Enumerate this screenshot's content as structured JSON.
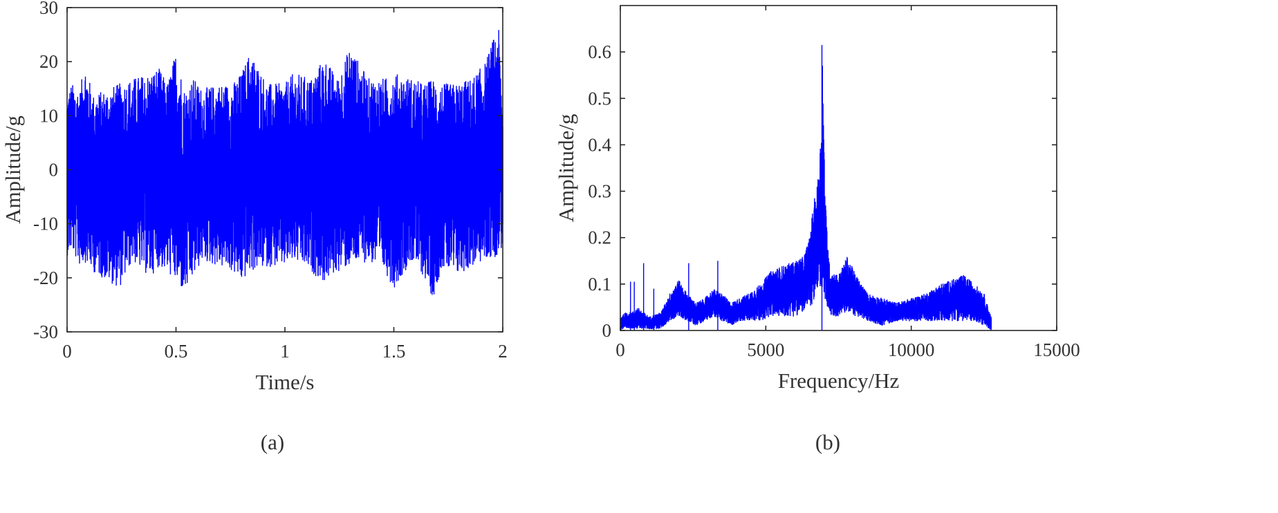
{
  "chart_data": [
    {
      "panel_label": "(a)",
      "type": "line",
      "title": "",
      "xlabel": "Time/s",
      "ylabel": "Amplitude/g",
      "xlim": [
        0,
        2
      ],
      "ylim": [
        -30,
        30
      ],
      "xticks": [
        0,
        0.5,
        1,
        1.5,
        2
      ],
      "xtick_labels": [
        "0",
        "0.5",
        "1",
        "1.5",
        "2"
      ],
      "yticks": [
        -30,
        -20,
        -10,
        0,
        10,
        20,
        30
      ],
      "ytick_labels": [
        "-30",
        "-20",
        "-10",
        "0",
        "10",
        "20",
        "30"
      ],
      "grid": false,
      "line_color": "#0000ff",
      "series": [
        {
          "x": [
            0,
            0.02,
            0.06,
            0.08,
            0.12,
            0.24,
            0.3,
            0.38,
            0.42,
            0.46,
            0.5,
            0.54,
            0.58,
            0.62,
            0.7,
            0.76,
            0.8,
            0.84,
            0.92,
            1.0,
            1.04,
            1.12,
            1.18,
            1.24,
            1.3,
            1.38,
            1.46,
            1.5,
            1.58,
            1.64,
            1.68,
            1.72,
            1.78,
            1.86,
            1.92,
            1.98,
            2.0
          ],
          "upper": [
            14,
            16,
            15,
            20,
            14,
            16,
            17,
            18,
            19,
            16,
            22,
            15,
            17,
            15,
            16,
            16,
            18,
            22,
            16,
            16,
            18,
            17,
            21,
            17,
            23,
            17,
            17,
            18,
            17,
            16,
            17,
            16,
            16,
            17,
            20,
            27,
            11
          ],
          "lower": [
            -16,
            -15,
            -18,
            -17,
            -19,
            -22,
            -17,
            -20,
            -18,
            -19,
            -21,
            -23,
            -20,
            -17,
            -18,
            -19,
            -21,
            -19,
            -18,
            -18,
            -17,
            -19,
            -21,
            -19,
            -18,
            -17,
            -19,
            -22,
            -17,
            -20,
            -24,
            -18,
            -20,
            -18,
            -17,
            -16,
            -14
          ]
        }
      ]
    },
    {
      "panel_label": "(b)",
      "type": "line",
      "title": "",
      "xlabel": "Frequency/Hz",
      "ylabel": "Amplitude/g",
      "xlim": [
        0,
        15000
      ],
      "ylim": [
        0,
        0.7
      ],
      "xticks": [
        0,
        5000,
        10000,
        15000
      ],
      "xtick_labels": [
        "0",
        "5000",
        "10000",
        "15000"
      ],
      "yticks": [
        0,
        0.1,
        0.2,
        0.3,
        0.4,
        0.5,
        0.6
      ],
      "ytick_labels": [
        "0",
        "0.1",
        "0.2",
        "0.3",
        "0.4",
        "0.5",
        "0.6"
      ],
      "grid": false,
      "line_color": "#0000ff",
      "series": [
        {
          "x": [
            0,
            200,
            400,
            600,
            800,
            1000,
            1400,
            1700,
            2000,
            2300,
            2600,
            2900,
            3200,
            3500,
            3800,
            4100,
            4400,
            4800,
            5200,
            5600,
            6000,
            6300,
            6500,
            6650,
            6750,
            6850,
            6900,
            6950,
            7000,
            7050,
            7200,
            7500,
            7800,
            8100,
            8500,
            9000,
            9500,
            10000,
            10500,
            11000,
            11400,
            11800,
            12200,
            12500,
            12750
          ],
          "upper": [
            0.03,
            0.04,
            0.04,
            0.05,
            0.04,
            0.03,
            0.04,
            0.08,
            0.11,
            0.08,
            0.06,
            0.07,
            0.09,
            0.08,
            0.06,
            0.07,
            0.08,
            0.1,
            0.13,
            0.14,
            0.15,
            0.16,
            0.2,
            0.28,
            0.3,
            0.38,
            0.43,
            0.61,
            0.42,
            0.28,
            0.13,
            0.12,
            0.16,
            0.12,
            0.08,
            0.07,
            0.06,
            0.07,
            0.08,
            0.1,
            0.11,
            0.12,
            0.1,
            0.08,
            0.03
          ],
          "lower": [
            0.0,
            0.002,
            0.004,
            0.002,
            0.004,
            0.002,
            0.004,
            0.02,
            0.03,
            0.02,
            0.01,
            0.02,
            0.03,
            0.02,
            0.01,
            0.02,
            0.02,
            0.02,
            0.03,
            0.03,
            0.03,
            0.04,
            0.05,
            0.06,
            0.07,
            0.08,
            0.07,
            0.09,
            0.07,
            0.06,
            0.03,
            0.03,
            0.04,
            0.03,
            0.02,
            0.01,
            0.02,
            0.02,
            0.02,
            0.02,
            0.02,
            0.02,
            0.02,
            0.01,
            0.0
          ],
          "spikes": [
            {
              "x": 350,
              "y": 0.105
            },
            {
              "x": 480,
              "y": 0.105
            },
            {
              "x": 800,
              "y": 0.145
            },
            {
              "x": 1150,
              "y": 0.09
            },
            {
              "x": 2350,
              "y": 0.145
            },
            {
              "x": 3350,
              "y": 0.15
            },
            {
              "x": 6930,
              "y": 0.615
            }
          ]
        }
      ]
    }
  ]
}
